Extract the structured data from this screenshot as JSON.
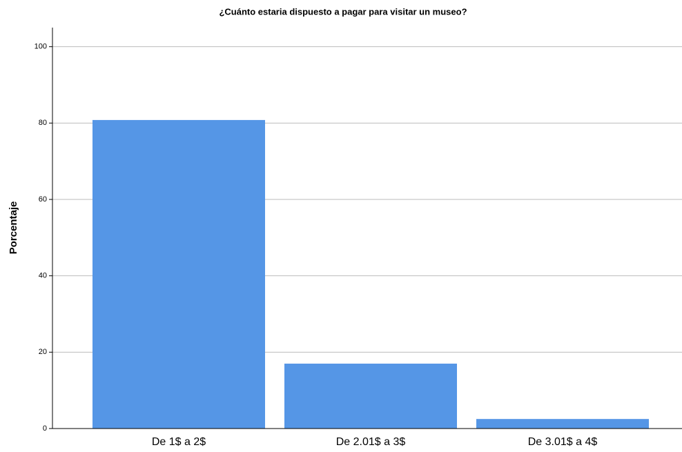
{
  "chart_data": {
    "type": "bar",
    "title": "¿Cuánto estaria dispuesto a pagar para visitar un museo?",
    "y_label": "Porcentaje",
    "categories": [
      "De 1$ a 2$",
      "De 2.01$ a 3$",
      "De 3.01$ a 4$"
    ],
    "values": [
      80.8,
      17,
      2.5
    ],
    "color": "#5596e6",
    "ylim": [
      0,
      105
    ],
    "yticks": [
      0,
      20,
      40,
      60,
      80,
      100
    ],
    "grid": true
  }
}
